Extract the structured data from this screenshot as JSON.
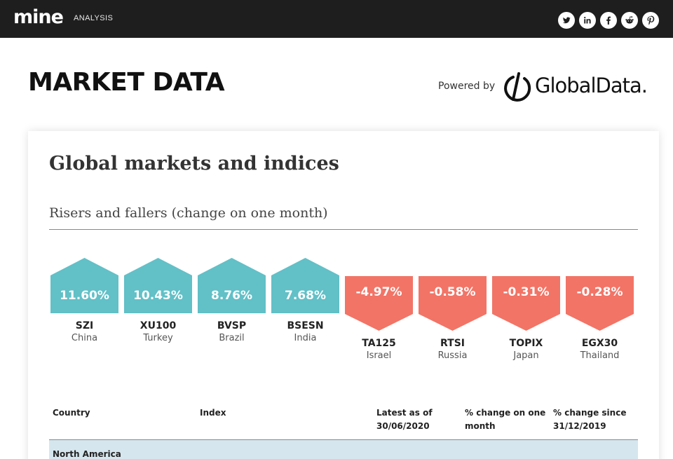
{
  "nav": {
    "logo": "mine",
    "section": "ANALYSIS",
    "socials": [
      {
        "name": "twitter-icon"
      },
      {
        "name": "linkedin-icon"
      },
      {
        "name": "facebook-icon"
      },
      {
        "name": "reddit-icon"
      },
      {
        "name": "pinterest-icon"
      }
    ]
  },
  "header": {
    "title": "MARKET DATA",
    "powered_by": "Powered by",
    "brand": "GlobalData."
  },
  "card": {
    "title": "Global markets and indices",
    "subtitle": "Risers and fallers (change on one month)"
  },
  "colors": {
    "riser": "#62c0c7",
    "faller": "#f27466"
  },
  "movers": [
    {
      "code": "SZI",
      "country": "China",
      "change": "11.60%",
      "direction": "up"
    },
    {
      "code": "XU100",
      "country": "Turkey",
      "change": "10.43%",
      "direction": "up"
    },
    {
      "code": "BVSP",
      "country": "Brazil",
      "change": "8.76%",
      "direction": "up"
    },
    {
      "code": "BSESN",
      "country": "India",
      "change": "7.68%",
      "direction": "up"
    },
    {
      "code": "TA125",
      "country": "Israel",
      "change": "-4.97%",
      "direction": "down"
    },
    {
      "code": "RTSI",
      "country": "Russia",
      "change": "-0.58%",
      "direction": "down"
    },
    {
      "code": "TOPIX",
      "country": "Japan",
      "change": "-0.31%",
      "direction": "down"
    },
    {
      "code": "EGX30",
      "country": "Thailand",
      "change": "-0.28%",
      "direction": "down"
    }
  ],
  "table": {
    "headers": {
      "country": "Country",
      "index": "Index",
      "latest_1": "Latest as of",
      "latest_2": "30/06/2020",
      "month_1": "% change on one",
      "month_2": "month",
      "since_1": "% change since",
      "since_2": "31/12/2019"
    },
    "regions": [
      "North America"
    ]
  }
}
